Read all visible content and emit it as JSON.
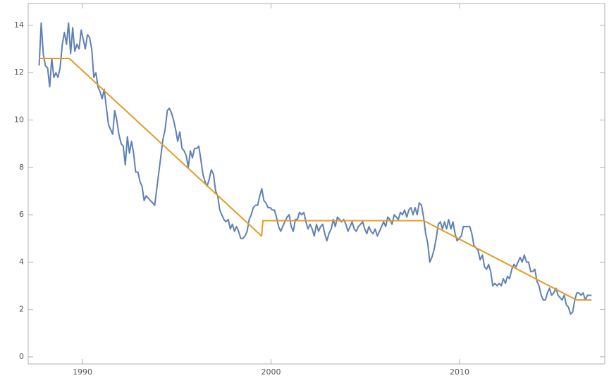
{
  "chart_data": {
    "type": "line",
    "xlim": [
      1987.12,
      2017.7
    ],
    "ylim": [
      -0.3,
      14.92
    ],
    "xticks": [
      1990,
      2000,
      2010
    ],
    "yticks": [
      0,
      2,
      4,
      6,
      8,
      10,
      12,
      14
    ],
    "series": [
      {
        "color": "#5e81b5",
        "x": [
          1987.7,
          1987.81,
          1987.92,
          1988.03,
          1988.15,
          1988.26,
          1988.37,
          1988.48,
          1988.59,
          1988.7,
          1988.81,
          1988.93,
          1989.04,
          1989.15,
          1989.26,
          1989.37,
          1989.48,
          1989.59,
          1989.71,
          1989.82,
          1989.93,
          1990.04,
          1990.15,
          1990.26,
          1990.37,
          1990.49,
          1990.6,
          1990.71,
          1990.82,
          1990.93,
          1991.04,
          1991.15,
          1991.27,
          1991.38,
          1991.49,
          1991.6,
          1991.71,
          1991.82,
          1991.93,
          1992.05,
          1992.16,
          1992.27,
          1992.38,
          1992.49,
          1992.6,
          1992.71,
          1992.82,
          1992.94,
          1993.05,
          1993.16,
          1993.27,
          1993.38,
          1993.49,
          1993.6,
          1993.72,
          1993.83,
          1993.94,
          1994.05,
          1994.16,
          1994.27,
          1994.38,
          1994.5,
          1994.61,
          1994.72,
          1994.83,
          1994.94,
          1995.05,
          1995.16,
          1995.28,
          1995.39,
          1995.5,
          1995.61,
          1995.72,
          1995.83,
          1995.94,
          1996.06,
          1996.17,
          1996.28,
          1996.39,
          1996.5,
          1996.61,
          1996.72,
          1996.83,
          1996.95,
          1997.06,
          1997.17,
          1997.28,
          1997.39,
          1997.5,
          1997.61,
          1997.73,
          1997.84,
          1997.95,
          1998.06,
          1998.17,
          1998.28,
          1998.39,
          1998.51,
          1998.62,
          1998.73,
          1998.84,
          1998.95,
          1999.06,
          1999.17,
          1999.29,
          1999.4,
          1999.51,
          1999.62,
          1999.73,
          1999.84,
          1999.95,
          2000.07,
          2000.18,
          2000.29,
          2000.4,
          2000.51,
          2000.62,
          2000.73,
          2000.85,
          2000.96,
          2001.07,
          2001.18,
          2001.29,
          2001.4,
          2001.51,
          2001.63,
          2001.74,
          2001.85,
          2001.96,
          2002.07,
          2002.18,
          2002.29,
          2002.41,
          2002.52,
          2002.63,
          2002.74,
          2002.85,
          2002.96,
          2003.07,
          2003.19,
          2003.3,
          2003.41,
          2003.52,
          2003.63,
          2003.74,
          2003.85,
          2003.97,
          2004.08,
          2004.19,
          2004.3,
          2004.41,
          2004.52,
          2004.63,
          2004.75,
          2004.86,
          2004.97,
          2005.08,
          2005.19,
          2005.3,
          2005.41,
          2005.52,
          2005.64,
          2005.75,
          2005.86,
          2005.97,
          2006.08,
          2006.19,
          2006.3,
          2006.42,
          2006.53,
          2006.64,
          2006.75,
          2006.86,
          2006.97,
          2007.08,
          2007.2,
          2007.31,
          2007.42,
          2007.53,
          2007.64,
          2007.75,
          2007.86,
          2007.98,
          2008.09,
          2008.2,
          2008.31,
          2008.42,
          2008.53,
          2008.64,
          2008.76,
          2008.87,
          2008.98,
          2009.09,
          2009.2,
          2009.31,
          2009.42,
          2009.54,
          2009.65,
          2009.76,
          2009.87,
          2009.98,
          2010.09,
          2010.2,
          2010.32,
          2010.43,
          2010.54,
          2010.65,
          2010.76,
          2010.87,
          2010.98,
          2011.09,
          2011.21,
          2011.32,
          2011.43,
          2011.54,
          2011.65,
          2011.76,
          2011.87,
          2011.99,
          2012.1,
          2012.21,
          2012.32,
          2012.43,
          2012.54,
          2012.65,
          2012.77,
          2012.88,
          2012.99,
          2013.1,
          2013.21,
          2013.32,
          2013.43,
          2013.55,
          2013.66,
          2013.77,
          2013.88,
          2013.99,
          2014.1,
          2014.21,
          2014.33,
          2014.44,
          2014.55,
          2014.66,
          2014.77,
          2014.88,
          2014.99,
          2015.11,
          2015.22,
          2015.33,
          2015.44,
          2015.55,
          2015.66,
          2015.77,
          2015.89,
          2016.0,
          2016.11,
          2016.22,
          2016.33,
          2016.44,
          2016.55,
          2016.67,
          2016.78,
          2016.89,
          2017.0
        ],
        "values": [
          12.3,
          14.1,
          12.8,
          12.3,
          12.2,
          11.4,
          12.6,
          11.8,
          12.0,
          11.8,
          12.2,
          13.2,
          13.7,
          13.2,
          14.1,
          12.8,
          13.9,
          12.9,
          13.2,
          13.0,
          13.8,
          13.4,
          13.0,
          13.6,
          13.5,
          13.0,
          11.8,
          12.0,
          11.4,
          11.2,
          10.9,
          11.3,
          10.5,
          9.8,
          9.6,
          9.4,
          10.4,
          10.0,
          9.4,
          9.0,
          8.9,
          8.1,
          9.3,
          8.6,
          9.1,
          8.6,
          7.8,
          7.8,
          7.4,
          7.2,
          6.6,
          6.8,
          6.7,
          6.6,
          6.5,
          6.4,
          7.1,
          7.8,
          8.5,
          9.2,
          9.6,
          10.4,
          10.5,
          10.3,
          10.0,
          9.6,
          9.1,
          9.5,
          8.8,
          8.7,
          8.5,
          8.0,
          8.7,
          8.4,
          8.8,
          8.8,
          8.9,
          8.3,
          7.7,
          7.4,
          7.2,
          7.5,
          7.9,
          7.7,
          7.0,
          6.8,
          6.2,
          6.0,
          5.8,
          5.7,
          5.8,
          5.4,
          5.6,
          5.3,
          5.5,
          5.3,
          5.0,
          5.0,
          5.1,
          5.3,
          5.8,
          6.0,
          6.3,
          6.4,
          6.4,
          6.8,
          7.1,
          6.6,
          6.5,
          6.3,
          6.3,
          6.2,
          6.2,
          5.9,
          5.5,
          5.3,
          5.5,
          5.7,
          5.9,
          6.0,
          5.5,
          5.3,
          5.8,
          5.8,
          6.1,
          6.0,
          6.1,
          5.7,
          5.4,
          5.6,
          5.4,
          5.1,
          5.6,
          5.3,
          5.5,
          5.6,
          5.2,
          4.9,
          5.2,
          5.4,
          5.8,
          5.5,
          5.9,
          5.8,
          5.7,
          5.8,
          5.6,
          5.3,
          5.5,
          5.7,
          5.4,
          5.3,
          5.5,
          5.6,
          5.7,
          5.4,
          5.2,
          5.5,
          5.3,
          5.2,
          5.4,
          5.1,
          5.3,
          5.5,
          5.7,
          5.5,
          5.9,
          5.8,
          5.6,
          6.0,
          5.9,
          5.8,
          6.1,
          6.0,
          6.2,
          5.9,
          6.2,
          6.3,
          6.0,
          6.3,
          6.0,
          6.5,
          6.4,
          5.9,
          5.2,
          4.8,
          4.0,
          4.2,
          4.5,
          5.0,
          5.6,
          5.7,
          5.4,
          5.7,
          5.4,
          5.8,
          5.4,
          5.7,
          5.2,
          4.9,
          5.0,
          5.1,
          5.5,
          5.5,
          5.5,
          5.5,
          5.2,
          4.7,
          4.6,
          4.5,
          4.1,
          4.3,
          3.8,
          3.7,
          3.9,
          3.6,
          3.0,
          3.1,
          3.0,
          3.1,
          3.0,
          3.3,
          3.1,
          3.4,
          3.3,
          3.7,
          3.9,
          3.8,
          4.0,
          4.2,
          4.0,
          4.3,
          4.0,
          4.0,
          3.6,
          3.6,
          3.7,
          3.2,
          3.0,
          2.6,
          2.4,
          2.4,
          2.7,
          2.9,
          2.6,
          2.7,
          2.9,
          2.6,
          2.5,
          2.4,
          2.6,
          2.2,
          2.1,
          1.8,
          1.9,
          2.4,
          2.7,
          2.7,
          2.6,
          2.7,
          2.4,
          2.6,
          2.6,
          2.6
        ]
      },
      {
        "color": "#e19c24",
        "x": [
          1987.7,
          1989.3,
          1999.5,
          1999.57,
          2008.1,
          2016.2,
          2017.0
        ],
        "values": [
          12.6,
          12.6,
          5.1,
          5.75,
          5.75,
          2.4,
          2.4
        ]
      }
    ]
  }
}
